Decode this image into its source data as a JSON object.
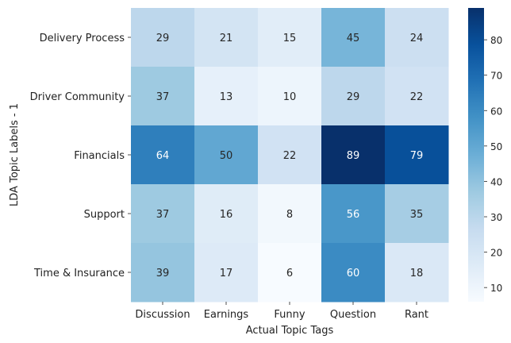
{
  "chart_data": {
    "type": "heatmap",
    "xlabel": "Actual Topic Tags",
    "ylabel": "LDA Topic Labels - 1",
    "x_categories": [
      "Discussion",
      "Earnings",
      "Funny",
      "Question",
      "Rant"
    ],
    "y_categories": [
      "Delivery Process",
      "Driver Community",
      "Financials",
      "Support",
      "Time & Insurance"
    ],
    "values": [
      [
        29,
        21,
        15,
        45,
        24
      ],
      [
        37,
        13,
        10,
        29,
        22
      ],
      [
        64,
        50,
        22,
        89,
        79
      ],
      [
        37,
        16,
        8,
        56,
        35
      ],
      [
        39,
        17,
        6,
        60,
        18
      ]
    ],
    "colormap": "Blues",
    "colorbar": {
      "min": 6,
      "max": 89,
      "ticks": [
        10,
        20,
        30,
        40,
        50,
        60,
        70,
        80
      ]
    },
    "colors": {
      "low": "#f7fbff",
      "high": "#08306b"
    }
  }
}
